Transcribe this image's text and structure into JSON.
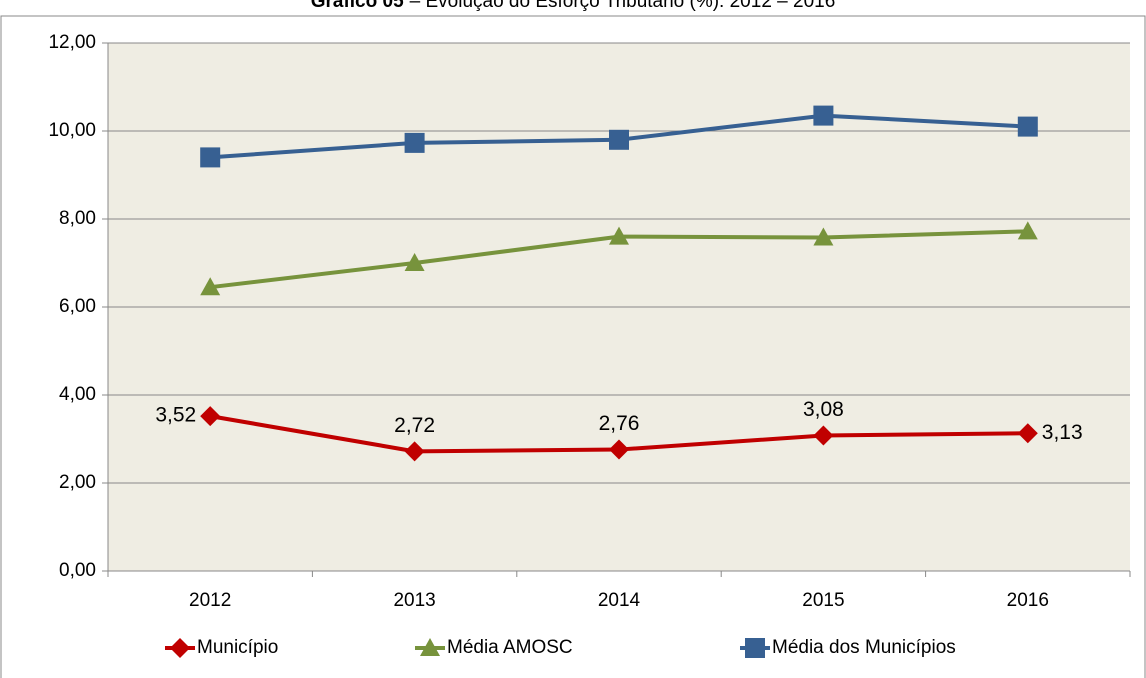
{
  "chart_data": {
    "type": "line",
    "title_bold": "Gráfico 05",
    "title": "– Evolução do Esforço Tributário (%): 2012 – 2016",
    "categories": [
      "2012",
      "2013",
      "2014",
      "2015",
      "2016"
    ],
    "series": [
      {
        "name": "Município",
        "color": "#c00000",
        "marker": "diamond",
        "values": [
          3.52,
          2.72,
          2.76,
          3.08,
          3.13
        ],
        "value_labels": [
          "3,52",
          "2,72",
          "2,76",
          "3,08",
          "3,13"
        ]
      },
      {
        "name": "Média AMOSC",
        "color": "#77933c",
        "marker": "triangle",
        "values": [
          6.45,
          7.0,
          7.6,
          7.58,
          7.72
        ]
      },
      {
        "name": "Média dos Municípios",
        "color": "#376092",
        "marker": "square",
        "values": [
          9.4,
          9.73,
          9.8,
          10.35,
          10.1
        ]
      }
    ],
    "ylim": [
      0,
      12
    ],
    "yticks": [
      {
        "value": 0,
        "label": "0,00"
      },
      {
        "value": 2,
        "label": "2,00"
      },
      {
        "value": 4,
        "label": "4,00"
      },
      {
        "value": 6,
        "label": "6,00"
      },
      {
        "value": 8,
        "label": "8,00"
      },
      {
        "value": 10,
        "label": "10,00"
      },
      {
        "value": 12,
        "label": "12,00"
      }
    ],
    "grid": true,
    "legend": "bottom"
  }
}
